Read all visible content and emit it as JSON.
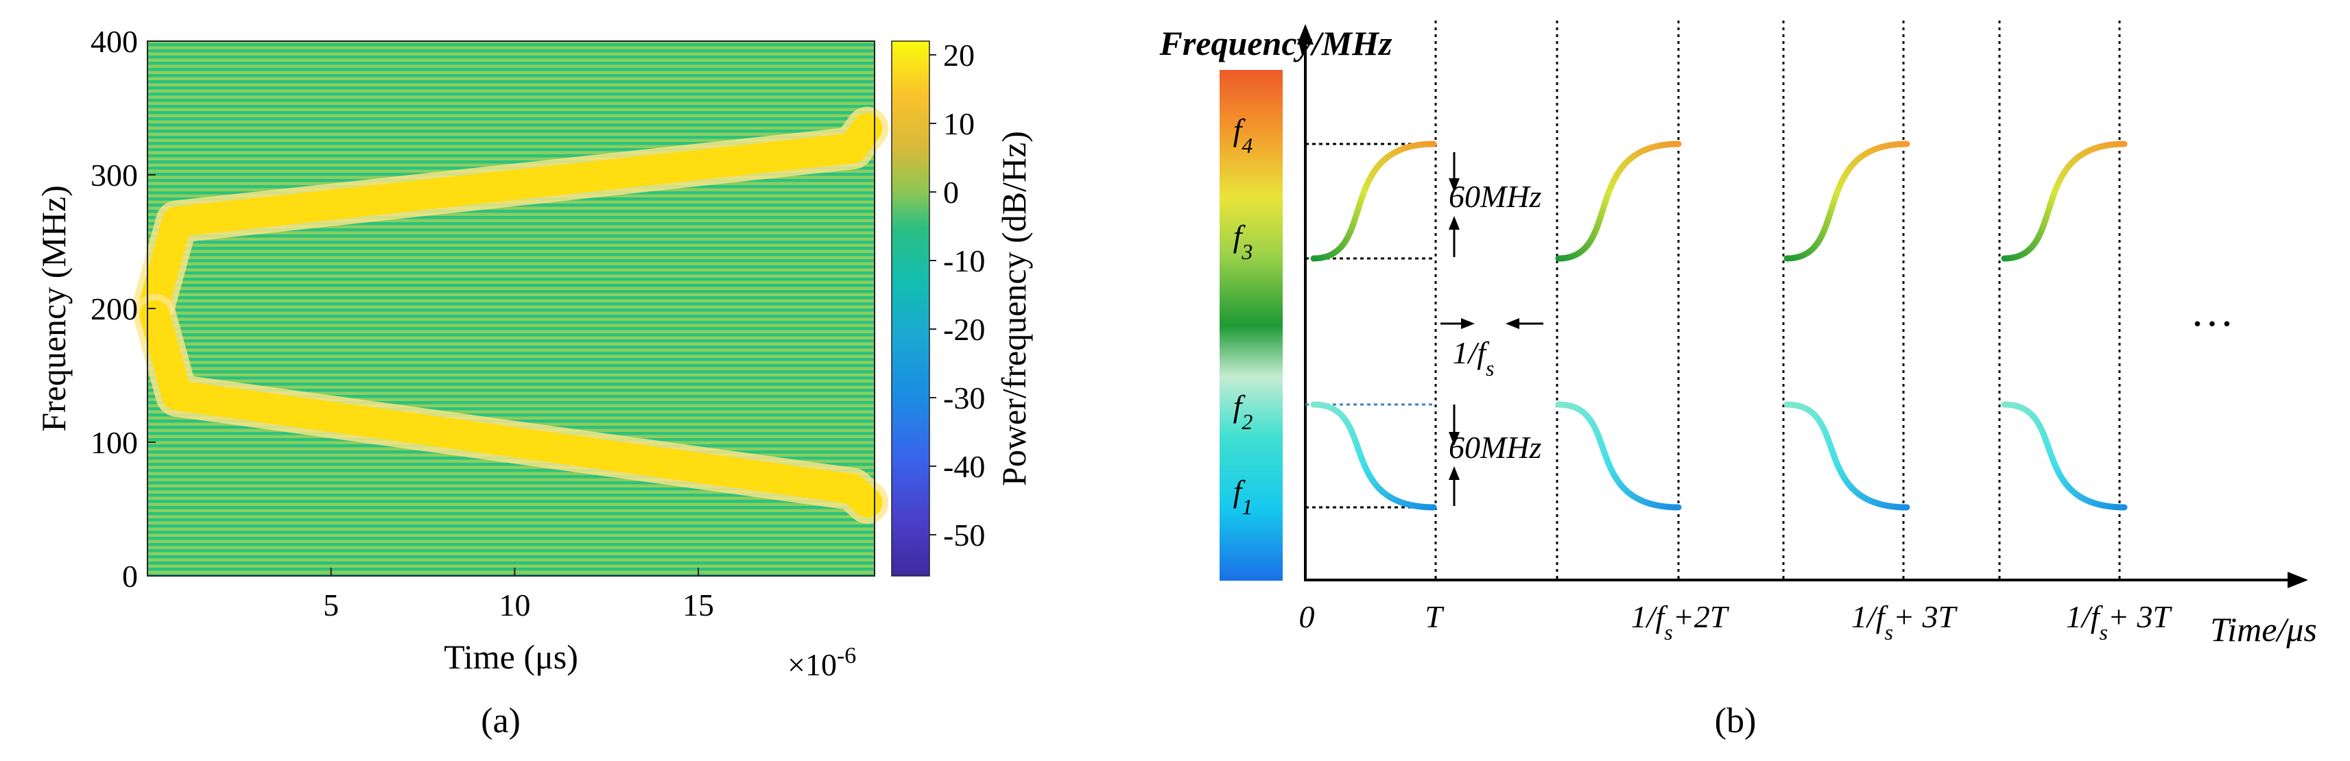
{
  "chart_data": [
    {
      "type": "heatmap",
      "panel_label": "(a)",
      "xlabel": "Time (μs)",
      "ylabel": "Frequency (MHz)",
      "x_exponent_label": "×10",
      "x_exponent_power": "-6",
      "xlim": [
        0,
        19.8
      ],
      "ylim": [
        0,
        400
      ],
      "x_ticks": [
        5,
        10,
        15
      ],
      "y_ticks": [
        0,
        100,
        200,
        300,
        400
      ],
      "colorbar": {
        "label": "Power/frequency (dB/Hz)",
        "ticks": [
          20,
          10,
          0,
          -10,
          -20,
          -30,
          -40,
          -50
        ],
        "range": [
          -56,
          22
        ]
      },
      "series": [
        {
          "name": "upper chirp",
          "x": [
            0.2,
            0.8,
            19.2,
            19.6
          ],
          "y": [
            205,
            265,
            320,
            335
          ]
        },
        {
          "name": "lower chirp",
          "x": [
            0.2,
            0.8,
            19.2,
            19.6
          ],
          "y": [
            195,
            135,
            65,
            55
          ]
        }
      ]
    },
    {
      "type": "diagram",
      "panel_label": "(b)",
      "ylabel": "Frequency/MHz",
      "xlabel": "Time/μs",
      "colorbar_labels": [
        {
          "main": "f",
          "sub": "4"
        },
        {
          "main": "f",
          "sub": "3"
        },
        {
          "main": "f",
          "sub": "2"
        },
        {
          "main": "f",
          "sub": "1"
        }
      ],
      "x_labels": [
        {
          "text": "0"
        },
        {
          "text": "T"
        },
        {
          "pre": "1/f",
          "sub": "s",
          "post": "+2T"
        },
        {
          "pre": "1/f",
          "sub": "s",
          "post": "+ 3T"
        },
        {
          "pre": "1/f",
          "sub": "s",
          "post": "+ 3T"
        }
      ],
      "annotations": {
        "upper_span": "60MHz",
        "lower_span": "60MHz",
        "interval": {
          "pre": "1/f",
          "sub": "s"
        },
        "continuation": "…"
      }
    }
  ]
}
